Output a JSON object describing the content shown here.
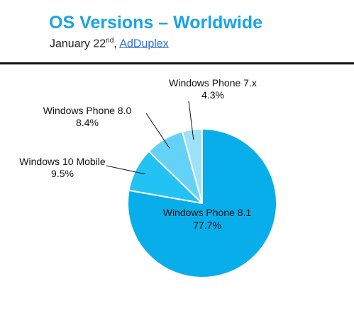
{
  "header": {
    "title": "OS Versions – Worldwide",
    "date_month_day": "January 22",
    "date_suffix": "nd",
    "separator": ", ",
    "source_link": "AdDuplex"
  },
  "chart_data": {
    "type": "pie",
    "categories": [
      "Windows Phone 8.1",
      "Windows 10 Mobile",
      "Windows Phone 8.0",
      "Windows Phone 7.x"
    ],
    "values": [
      77.7,
      9.5,
      8.4,
      4.3
    ],
    "value_labels": [
      "77.7%",
      "9.5%",
      "8.4%",
      "4.3%"
    ],
    "colors": [
      "#08aeea",
      "#22c2f5",
      "#64d2f6",
      "#9de2f9"
    ],
    "start_angle_deg": 0,
    "direction": "clockwise",
    "label_placement": [
      "inside",
      "outside",
      "outside",
      "outside"
    ]
  }
}
